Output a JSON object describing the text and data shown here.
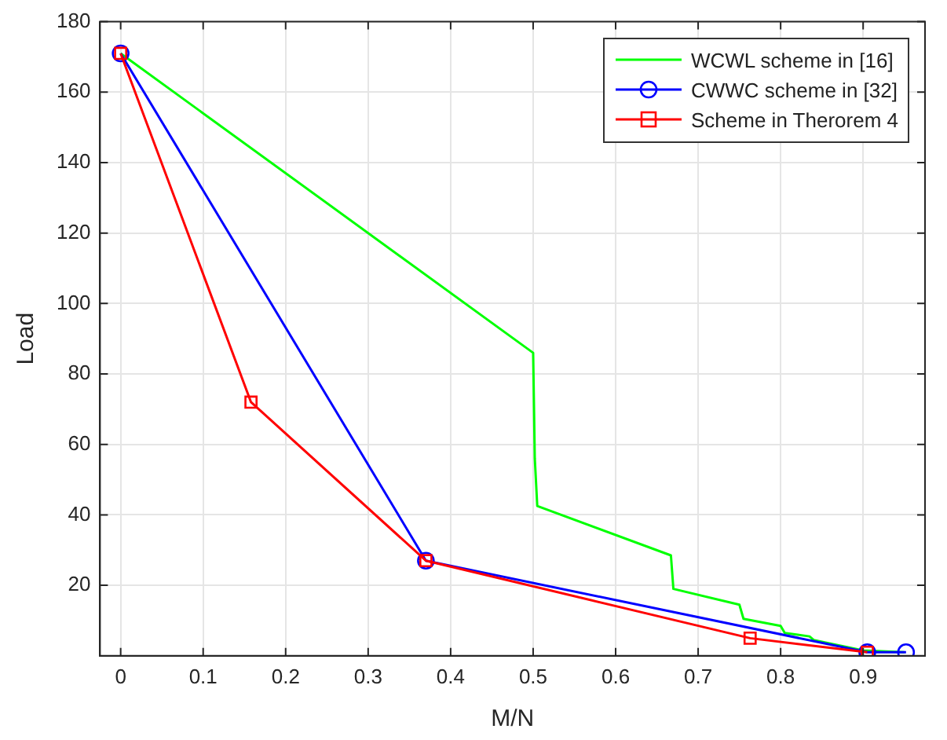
{
  "chart_data": {
    "type": "line",
    "xlabel": "M/N",
    "ylabel": "Load",
    "xlim": [
      -0.025,
      0.975
    ],
    "xticks": [
      0,
      0.1,
      0.2,
      0.3,
      0.4,
      0.5,
      0.6,
      0.7,
      0.8,
      0.9
    ],
    "ylim": [
      0,
      180
    ],
    "yticks": [
      20,
      40,
      60,
      80,
      100,
      120,
      140,
      160,
      180
    ],
    "grid": true,
    "legend": "top right",
    "series": [
      {
        "name": "WCWL scheme in [16]",
        "color": "#00ff00",
        "marker": "none",
        "x": [
          0,
          0.5,
          0.502,
          0.505,
          0.667,
          0.67,
          0.75,
          0.755,
          0.8,
          0.805,
          0.835,
          0.84,
          0.86,
          0.9,
          0.95
        ],
        "values": [
          171,
          86,
          56,
          42.5,
          28.5,
          19,
          14.5,
          10.5,
          8.5,
          6.5,
          5.5,
          4.5,
          3.5,
          1.5,
          1
        ]
      },
      {
        "name": "CWWC scheme in [32]",
        "color": "#0000ff",
        "marker": "circle",
        "x": [
          0,
          0.37,
          0.905,
          0.952
        ],
        "values": [
          171,
          27,
          1,
          1
        ]
      },
      {
        "name": "Scheme in Therorem 4",
        "color": "#ff0000",
        "marker": "square",
        "x": [
          0,
          0.158,
          0.37,
          0.763,
          0.905
        ],
        "values": [
          171,
          72,
          27,
          5,
          1
        ]
      }
    ]
  }
}
